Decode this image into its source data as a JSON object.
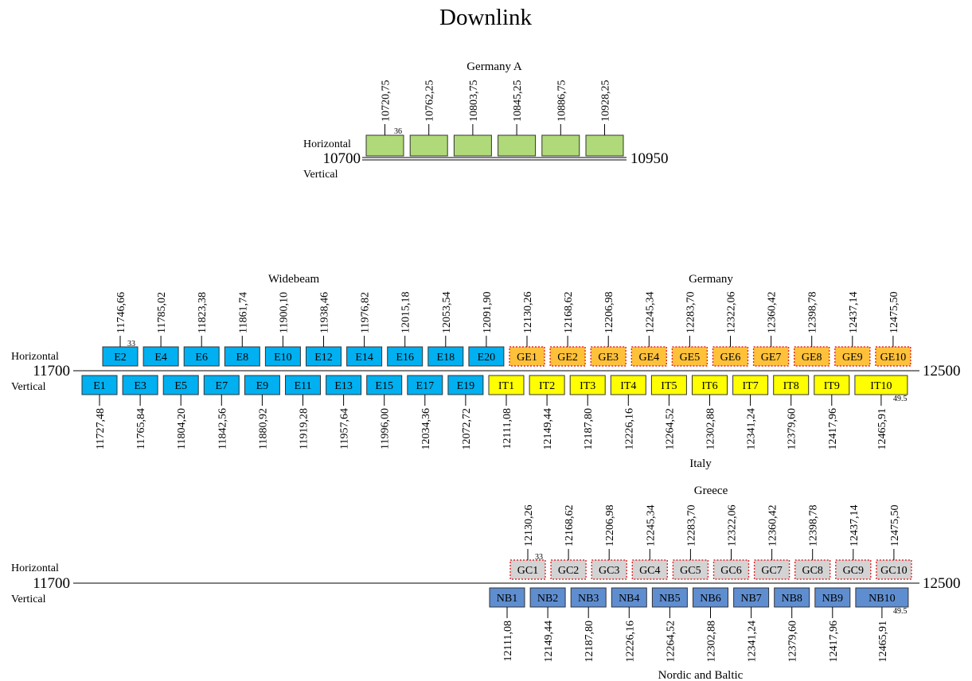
{
  "title": "Downlink",
  "colors": {
    "green": "#b0d979",
    "blue": "#00b0f0",
    "orange": "#ffc13a",
    "yellow": "#ffff00",
    "gray": "#d3d3d3",
    "steel": "#5f8ed0",
    "dotted_border": "#e8262b",
    "box_border": "#333333"
  },
  "sections": {
    "germany_a": {
      "title": "Germany A",
      "pol_h": "Horizontal",
      "pol_v": "Vertical",
      "start": "10700",
      "end": "10950",
      "bw_note": "36",
      "freqs": [
        "10720,75",
        "10762,25",
        "10803,75",
        "10845,25",
        "10886,75",
        "10928,25"
      ]
    },
    "main": {
      "label_widebeam": "Widebeam",
      "label_germany": "Germany",
      "label_italy": "Italy",
      "pol_h": "Horizontal",
      "pol_v": "Vertical",
      "start": "11700",
      "end": "12500",
      "note_top": "33",
      "note_bottom": "49.5",
      "top": [
        {
          "label": "E2",
          "freq": "11746,66"
        },
        {
          "label": "E4",
          "freq": "11785,02"
        },
        {
          "label": "E6",
          "freq": "11823,38"
        },
        {
          "label": "E8",
          "freq": "11861,74"
        },
        {
          "label": "E10",
          "freq": "11900,10"
        },
        {
          "label": "E12",
          "freq": "11938,46"
        },
        {
          "label": "E14",
          "freq": "11976,82"
        },
        {
          "label": "E16",
          "freq": "12015,18"
        },
        {
          "label": "E18",
          "freq": "12053,54"
        },
        {
          "label": "E20",
          "freq": "12091,90"
        },
        {
          "label": "GE1",
          "freq": "12130,26"
        },
        {
          "label": "GE2",
          "freq": "12168,62"
        },
        {
          "label": "GE3",
          "freq": "12206,98"
        },
        {
          "label": "GE4",
          "freq": "12245,34"
        },
        {
          "label": "GE5",
          "freq": "12283,70"
        },
        {
          "label": "GE6",
          "freq": "12322,06"
        },
        {
          "label": "GE7",
          "freq": "12360,42"
        },
        {
          "label": "GE8",
          "freq": "12398,78"
        },
        {
          "label": "GE9",
          "freq": "12437,14"
        },
        {
          "label": "GE10",
          "freq": "12475,50"
        }
      ],
      "bottom": [
        {
          "label": "E1",
          "freq": "11727,48"
        },
        {
          "label": "E3",
          "freq": "11765,84"
        },
        {
          "label": "E5",
          "freq": "11804,20"
        },
        {
          "label": "E7",
          "freq": "11842,56"
        },
        {
          "label": "E9",
          "freq": "11880,92"
        },
        {
          "label": "E11",
          "freq": "11919,28"
        },
        {
          "label": "E13",
          "freq": "11957,64"
        },
        {
          "label": "E15",
          "freq": "11996,00"
        },
        {
          "label": "E17",
          "freq": "12034,36"
        },
        {
          "label": "E19",
          "freq": "12072,72"
        },
        {
          "label": "IT1",
          "freq": "12111,08"
        },
        {
          "label": "IT2",
          "freq": "12149,44"
        },
        {
          "label": "IT3",
          "freq": "12187,80"
        },
        {
          "label": "IT4",
          "freq": "12226,16"
        },
        {
          "label": "IT5",
          "freq": "12264,52"
        },
        {
          "label": "IT6",
          "freq": "12302,88"
        },
        {
          "label": "IT7",
          "freq": "12341,24"
        },
        {
          "label": "IT8",
          "freq": "12379,60"
        },
        {
          "label": "IT9",
          "freq": "12417,96"
        },
        {
          "label": "IT10",
          "freq": "12465,91"
        }
      ]
    },
    "greece": {
      "label_greece": "Greece",
      "label_nordic": "Nordic and Baltic",
      "pol_h": "Horizontal",
      "pol_v": "Vertical",
      "start": "11700",
      "end": "12500",
      "note_top": "33",
      "note_bottom": "49.5",
      "top": [
        {
          "label": "GC1",
          "freq": "12130,26"
        },
        {
          "label": "GC2",
          "freq": "12168,62"
        },
        {
          "label": "GC3",
          "freq": "12206,98"
        },
        {
          "label": "GC4",
          "freq": "12245,34"
        },
        {
          "label": "GC5",
          "freq": "12283,70"
        },
        {
          "label": "GC6",
          "freq": "12322,06"
        },
        {
          "label": "GC7",
          "freq": "12360,42"
        },
        {
          "label": "GC8",
          "freq": "12398,78"
        },
        {
          "label": "GC9",
          "freq": "12437,14"
        },
        {
          "label": "GC10",
          "freq": "12475,50"
        }
      ],
      "bottom": [
        {
          "label": "NB1",
          "freq": "12111,08"
        },
        {
          "label": "NB2",
          "freq": "12149,44"
        },
        {
          "label": "NB3",
          "freq": "12187,80"
        },
        {
          "label": "NB4",
          "freq": "12226,16"
        },
        {
          "label": "NB5",
          "freq": "12264,52"
        },
        {
          "label": "NB6",
          "freq": "12302,88"
        },
        {
          "label": "NB7",
          "freq": "12341,24"
        },
        {
          "label": "NB8",
          "freq": "12379,60"
        },
        {
          "label": "NB9",
          "freq": "12417,96"
        },
        {
          "label": "NB10",
          "freq": "12465,91"
        }
      ]
    }
  }
}
